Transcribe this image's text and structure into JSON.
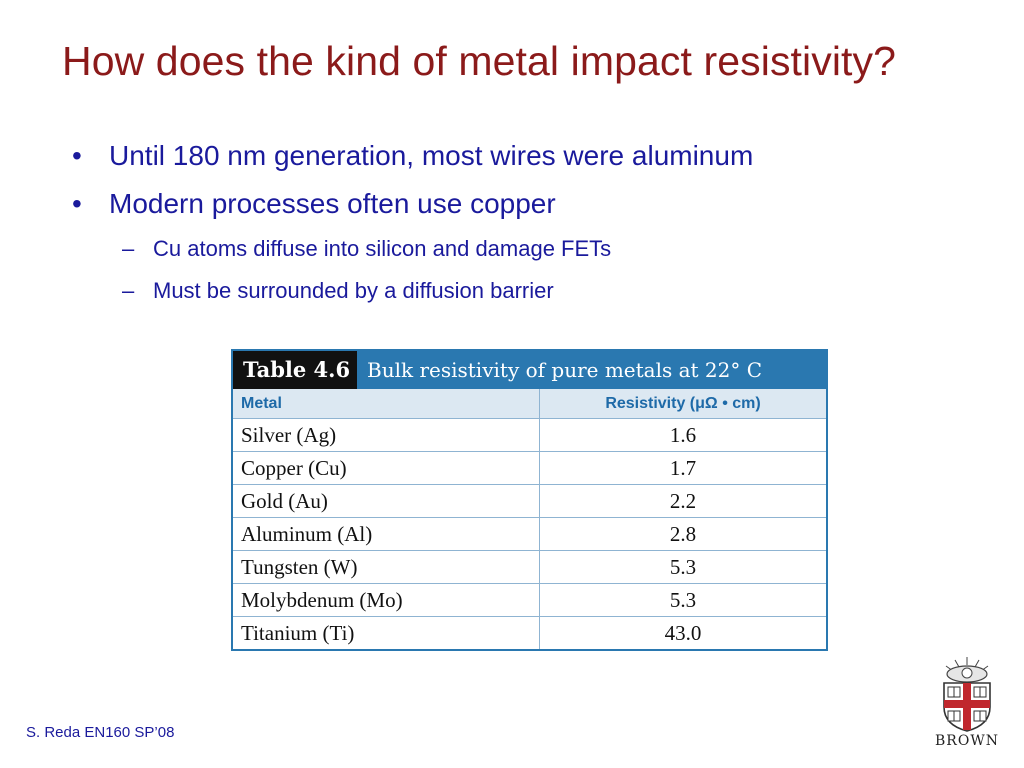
{
  "slide": {
    "title": "How does the kind of metal impact resistivity?",
    "bullets": [
      {
        "marker": "•",
        "text": "Until 180 nm generation, most wires were aluminum"
      },
      {
        "marker": "•",
        "text": "Modern processes often use copper"
      }
    ],
    "sub_bullets": [
      {
        "marker": "–",
        "text": "Cu atoms diffuse into silicon and damage FETs"
      },
      {
        "marker": "–",
        "text": "Must be surrounded by a diffusion barrier"
      }
    ],
    "footer": "S. Reda EN160 SP’08"
  },
  "table": {
    "number": "Table 4.6",
    "caption": "Bulk resistivity of pure metals at 22° C",
    "headers": [
      "Metal",
      "Resistivity (μΩ • cm)"
    ],
    "rows": [
      [
        "Silver (Ag)",
        "1.6"
      ],
      [
        "Copper (Cu)",
        "1.7"
      ],
      [
        "Gold (Au)",
        "2.2"
      ],
      [
        "Aluminum (Al)",
        "2.8"
      ],
      [
        "Tungsten (W)",
        "5.3"
      ],
      [
        "Molybdenum (Mo)",
        "5.3"
      ],
      [
        "Titanium (Ti)",
        "43.0"
      ]
    ],
    "header_color": "#2a78b0",
    "number_bg": "#111111"
  },
  "logo": {
    "icon": "brown-university-crest-icon",
    "text": "BROWN",
    "shield_red": "#c0272d"
  },
  "colors": {
    "title": "#8b1a1a",
    "body_text": "#1a1a9c"
  }
}
